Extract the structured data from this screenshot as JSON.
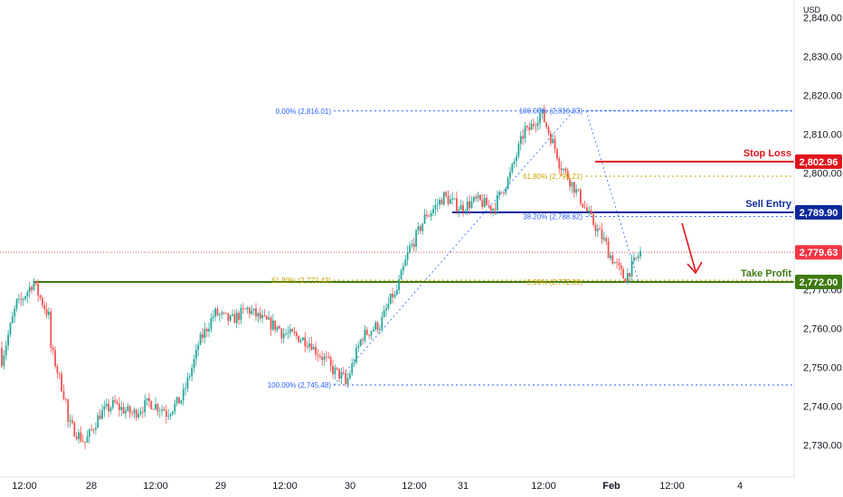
{
  "currency": "USD",
  "colors": {
    "up": "#26a69a",
    "down": "#ef5350",
    "fib_blue": "#2962ff",
    "fib_gold": "#c9a200",
    "stop": "#e0141c",
    "entry": "#0e2a9c",
    "tp": "#3f7a12",
    "last": "#f23645"
  },
  "chart_data": {
    "type": "candlestick",
    "y_ticks": [
      2730,
      2740,
      2750,
      2760,
      2770,
      2780,
      2790,
      2800,
      2810,
      2820,
      2830,
      2840
    ],
    "y_tick_labels": [
      "2,730.00",
      "2,740.00",
      "2,750.00",
      "2,760.00",
      "2,770.00",
      "2,780.00",
      "2,790.00",
      "2,800.00",
      "2,810.00",
      "2,820.00",
      "2,830.00",
      "2,840.00"
    ],
    "x_tick_labels": [
      "12:00",
      "28",
      "12:00",
      "29",
      "12:00",
      "30",
      "12:00",
      "31",
      "12:00",
      "Feb",
      "12:00",
      "4"
    ],
    "price_path": [
      [
        2755,
        2752
      ],
      [
        2768,
        2766
      ],
      [
        2772.5,
        2771
      ],
      [
        2762,
        2755
      ],
      [
        2740,
        2736
      ],
      [
        2731,
        2730
      ],
      [
        2738,
        2738
      ],
      [
        2741,
        2740
      ],
      [
        2738,
        2738
      ],
      [
        2741,
        2741
      ],
      [
        2739,
        2738
      ],
      [
        2742,
        2742
      ],
      [
        2755,
        2756
      ],
      [
        2764,
        2764
      ],
      [
        2762,
        2762
      ],
      [
        2765,
        2765
      ],
      [
        2762,
        2762
      ],
      [
        2760,
        2759
      ],
      [
        2758,
        2758
      ],
      [
        2756,
        2755
      ],
      [
        2751,
        2750
      ],
      [
        2747,
        2745.5
      ],
      [
        2758,
        2758
      ],
      [
        2761,
        2760
      ],
      [
        2770,
        2768
      ],
      [
        2782,
        2781
      ],
      [
        2790,
        2789
      ],
      [
        2794,
        2794
      ],
      [
        2791,
        2791
      ],
      [
        2793,
        2793
      ],
      [
        2791,
        2791
      ],
      [
        2799,
        2799
      ],
      [
        2812,
        2810
      ],
      [
        2816,
        2815
      ],
      [
        2804,
        2803
      ],
      [
        2796,
        2796
      ],
      [
        2788,
        2788
      ],
      [
        2781,
        2780
      ],
      [
        2773,
        2772.5
      ],
      [
        2779.63,
        2779.63
      ]
    ],
    "fibonacci_left": {
      "levels": [
        {
          "label": "0.00% (2,816.01)",
          "value": 2816.01
        },
        {
          "label": "61.80% (2,772.43)",
          "value": 2772.43
        },
        {
          "label": "100.00% (2,745.48)",
          "value": 2745.48
        }
      ]
    },
    "fibonacci_right": {
      "levels": [
        {
          "label": "100.00% (2,816.03)",
          "value": 2816.03
        },
        {
          "label": "61.80% (2,799.21)",
          "value": 2799.21
        },
        {
          "label": "38.20% (2,788.82)",
          "value": 2788.82
        },
        {
          "label": "0.00% (2,772.00)",
          "value": 2772.0
        }
      ]
    },
    "levels": {
      "stop_loss": {
        "label": "Stop Loss",
        "value": 2802.96,
        "badge": "2,802.96"
      },
      "sell_entry": {
        "label": "Sell Entry",
        "value": 2789.9,
        "badge": "2,789.90"
      },
      "take_profit": {
        "label": "Take Profit",
        "value": 2772.0,
        "badge": "2,772.00"
      },
      "last_price": {
        "value": 2779.63,
        "badge": "2,779.63"
      }
    }
  }
}
